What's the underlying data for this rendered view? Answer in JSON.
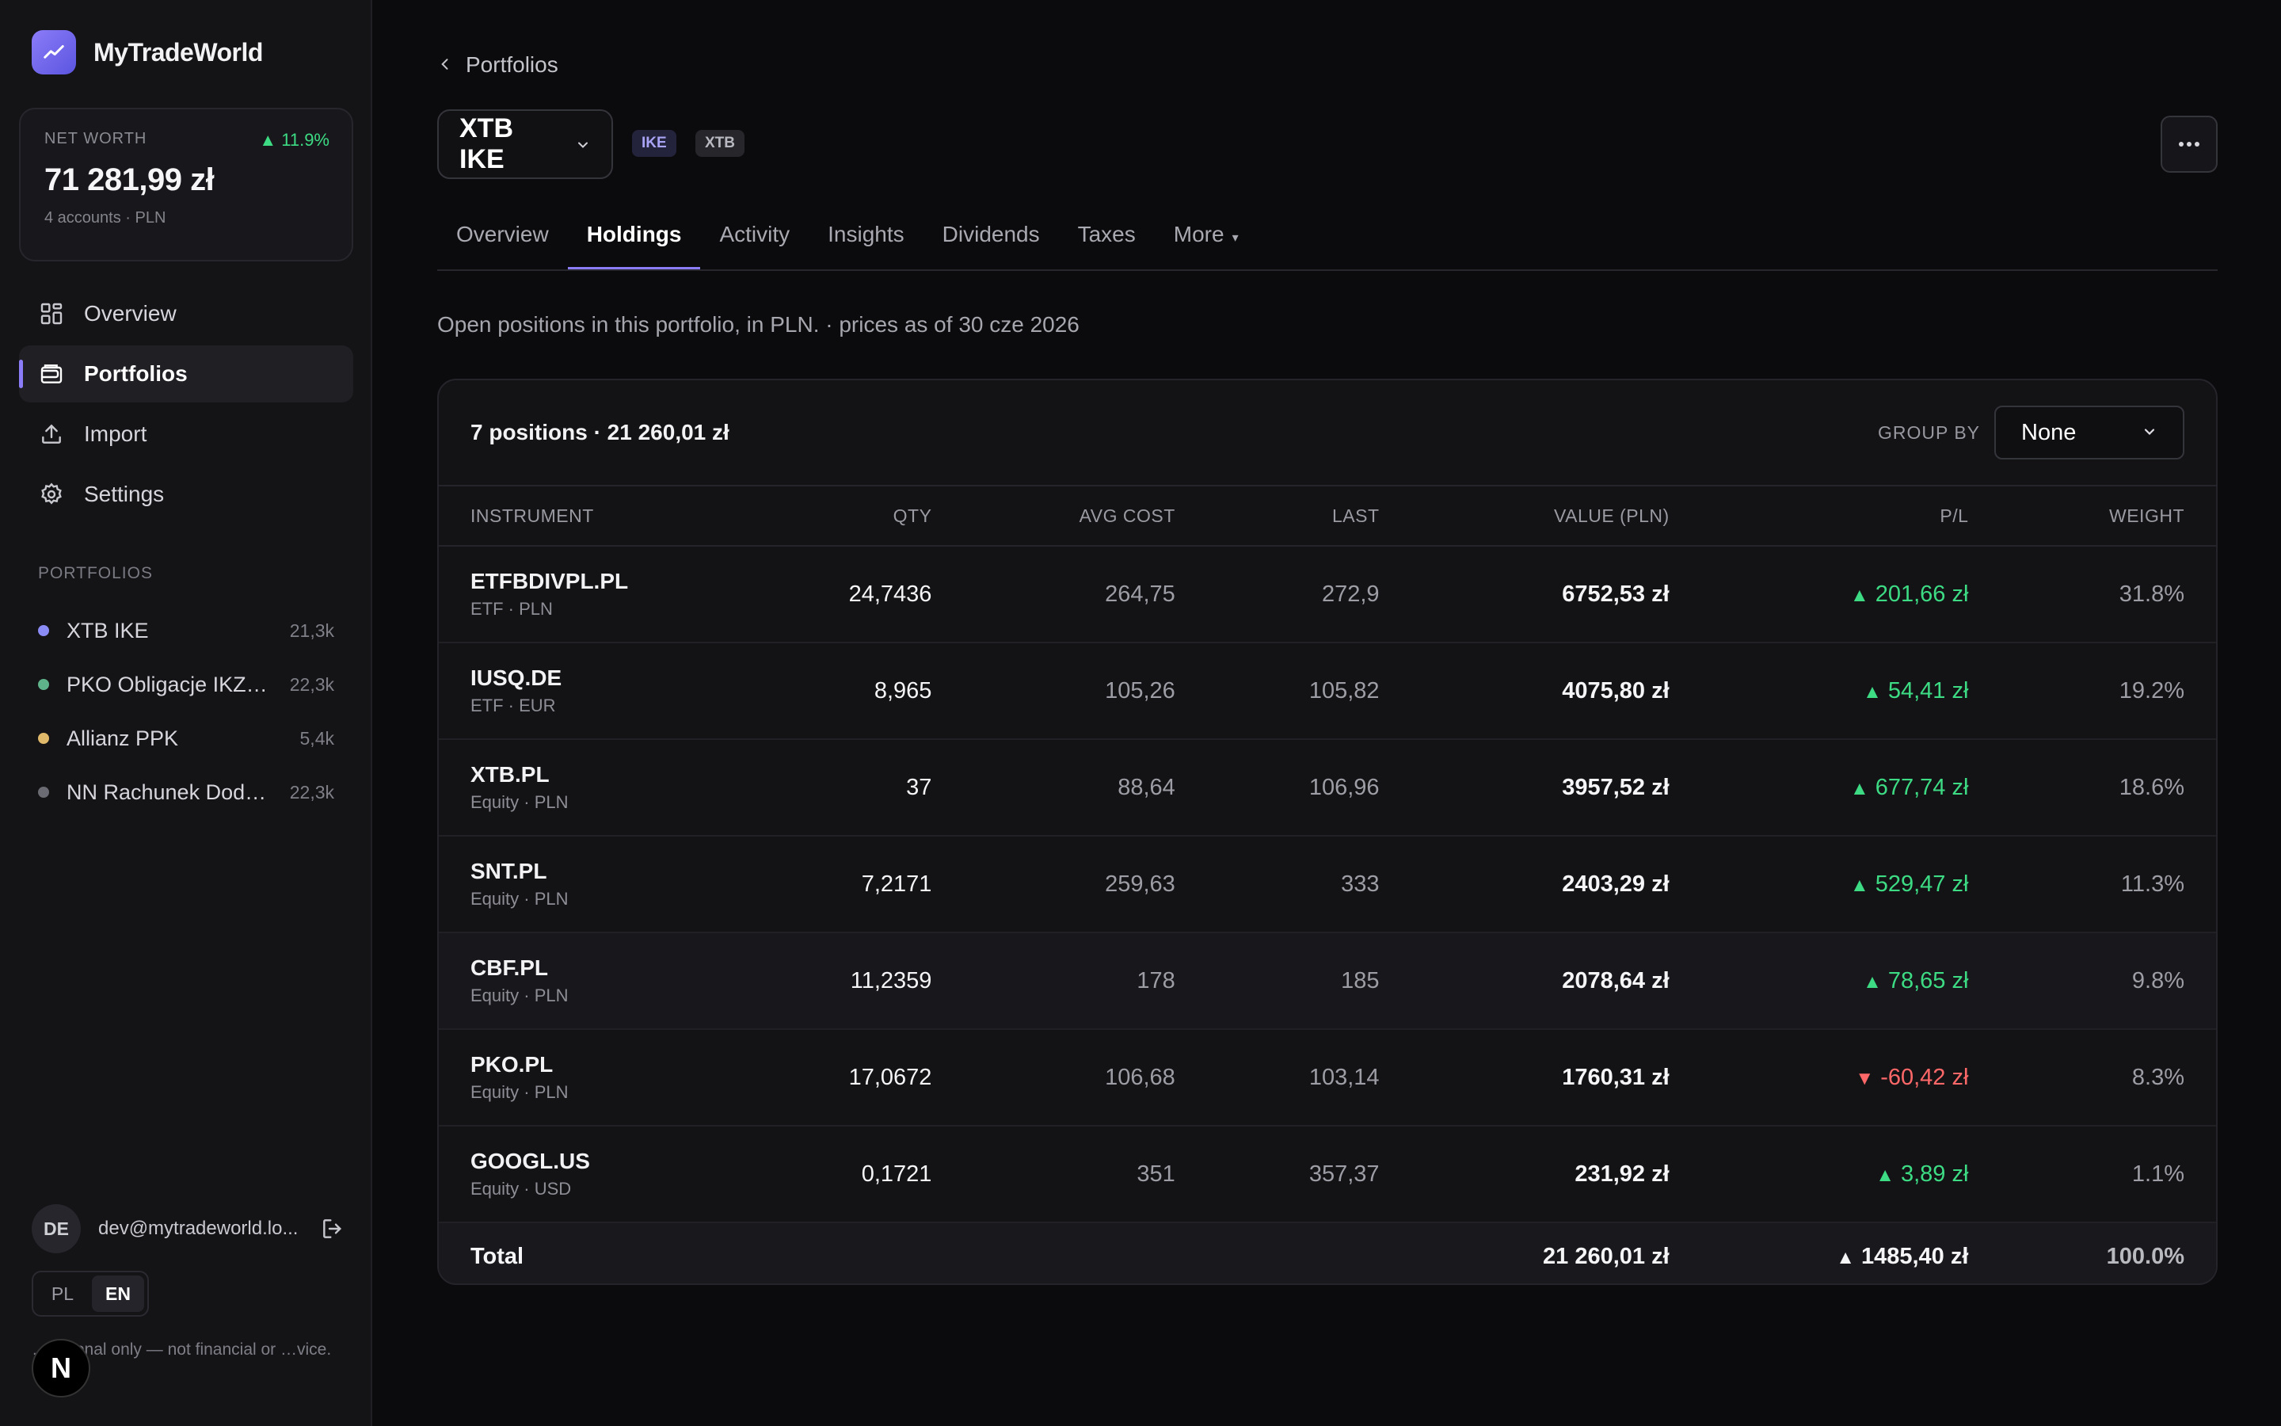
{
  "app": {
    "name": "MyTradeWorld"
  },
  "net_worth": {
    "label": "NET WORTH",
    "change": "▲ 11.9%",
    "value": "71 281,99 zł",
    "sub": "4 accounts · PLN"
  },
  "nav": {
    "items": [
      {
        "label": "Overview",
        "icon": "grid-icon"
      },
      {
        "label": "Portfolios",
        "icon": "wallet-icon"
      },
      {
        "label": "Import",
        "icon": "upload-icon"
      },
      {
        "label": "Settings",
        "icon": "gear-icon"
      }
    ]
  },
  "portfolios_section": {
    "label": "PORTFOLIOS",
    "items": [
      {
        "name": "XTB IKE",
        "value": "21,3k",
        "color": "#8b8bf5"
      },
      {
        "name": "PKO Obligacje IKZ…",
        "value": "22,3k",
        "color": "#5fb38a"
      },
      {
        "name": "Allianz PPK",
        "value": "5,4k",
        "color": "#e0b96a"
      },
      {
        "name": "NN Rachunek Dod…",
        "value": "22,3k",
        "color": "#6b6b73"
      }
    ]
  },
  "user": {
    "initials": "DE",
    "email": "dev@mytradeworld.lo..."
  },
  "lang": {
    "pl": "PL",
    "en": "EN",
    "active": "EN"
  },
  "disclaimer": "…national only — not financial or …vice.",
  "nbadge": "N",
  "breadcrumb": {
    "back_label": "Portfolios"
  },
  "portfolio": {
    "name": "XTB IKE",
    "tags": [
      "IKE",
      "XTB"
    ]
  },
  "tabs": [
    {
      "label": "Overview"
    },
    {
      "label": "Holdings",
      "active": true
    },
    {
      "label": "Activity"
    },
    {
      "label": "Insights"
    },
    {
      "label": "Dividends"
    },
    {
      "label": "Taxes"
    },
    {
      "label": "More",
      "caret": "▾"
    }
  ],
  "description": "Open positions in this portfolio, in PLN. · prices as of 30 cze 2026",
  "holdings": {
    "summary": "7 positions · 21 260,01 zł",
    "group_by_label": "GROUP BY",
    "group_by_value": "None",
    "columns": [
      "INSTRUMENT",
      "QTY",
      "AVG COST",
      "LAST",
      "VALUE (PLN)",
      "P/L",
      "WEIGHT"
    ],
    "rows": [
      {
        "symbol": "ETFBDIVPL.PL",
        "sub": "ETF · PLN",
        "qty": "24,7436",
        "avg": "264,75",
        "last": "272,9",
        "value": "6752,53 zł",
        "pl": "201,66 zł",
        "dir": "up",
        "weight": "31.8%"
      },
      {
        "symbol": "IUSQ.DE",
        "sub": "ETF · EUR",
        "qty": "8,965",
        "avg": "105,26",
        "last": "105,82",
        "value": "4075,80 zł",
        "pl": "54,41 zł",
        "dir": "up",
        "weight": "19.2%"
      },
      {
        "symbol": "XTB.PL",
        "sub": "Equity · PLN",
        "qty": "37",
        "avg": "88,64",
        "last": "106,96",
        "value": "3957,52 zł",
        "pl": "677,74 zł",
        "dir": "up",
        "weight": "18.6%"
      },
      {
        "symbol": "SNT.PL",
        "sub": "Equity · PLN",
        "qty": "7,2171",
        "avg": "259,63",
        "last": "333",
        "value": "2403,29 zł",
        "pl": "529,47 zł",
        "dir": "up",
        "weight": "11.3%"
      },
      {
        "symbol": "CBF.PL",
        "sub": "Equity · PLN",
        "qty": "11,2359",
        "avg": "178",
        "last": "185",
        "value": "2078,64 zł",
        "pl": "78,65 zł",
        "dir": "up",
        "weight": "9.8%"
      },
      {
        "symbol": "PKO.PL",
        "sub": "Equity · PLN",
        "qty": "17,0672",
        "avg": "106,68",
        "last": "103,14",
        "value": "1760,31 zł",
        "pl": "-60,42 zł",
        "dir": "down",
        "weight": "8.3%"
      },
      {
        "symbol": "GOOGL.US",
        "sub": "Equity · USD",
        "qty": "0,1721",
        "avg": "351",
        "last": "357,37",
        "value": "231,92 zł",
        "pl": "3,89 zł",
        "dir": "up",
        "weight": "1.1%"
      }
    ],
    "total": {
      "label": "Total",
      "value": "21 260,01 zł",
      "pl": "1485,40 zł",
      "weight": "100.0%"
    }
  },
  "colors": {
    "accent": "#8b7cf8",
    "positive": "#3ddc84",
    "negative": "#ff6868",
    "background": "#0b0b0d"
  }
}
